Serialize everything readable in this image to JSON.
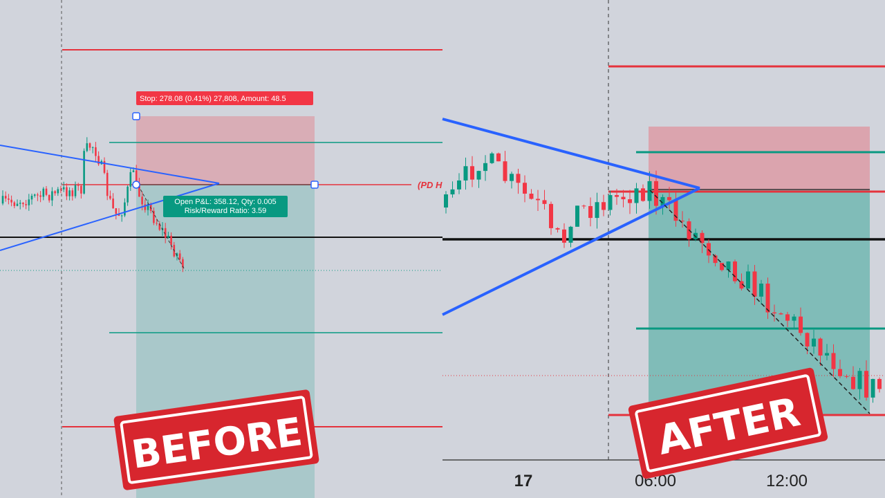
{
  "left_panel": {
    "stop_label": "Stop: 278.08 (0.41%) 27,808, Amount: 48.5",
    "pnl_label": [
      "Open P&L: 358.12, Qty: 0.005",
      "Risk/Reward Ratio: 3.59"
    ],
    "level_label": "(PD H",
    "stamp": "BEFORE"
  },
  "right_panel": {
    "time_axis": [
      "17",
      "06:00",
      "12:00"
    ],
    "stamp": "AFTER"
  }
}
